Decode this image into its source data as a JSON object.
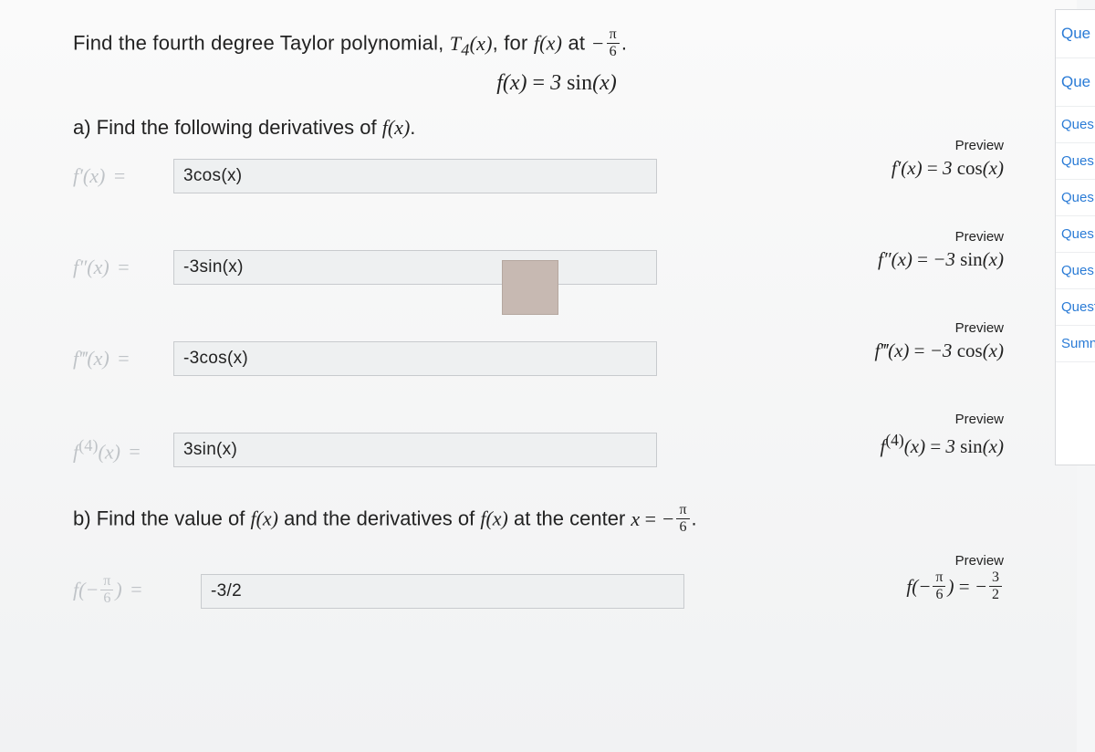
{
  "question": {
    "intro_html": "Find the fourth degree Taylor polynomial, <span class='math'>T<sub>4</sub>(x)</span>, for <span class='math'>f(x)</span> at <span class='math'>−<span class='frac'><span class='num'>π</span><span class='den'>6</span></span></span>.",
    "fn_def_html": "<span class='math'>f(x) <span class='up'>=</span> 3 <span class='up'>sin</span>(x)</span>",
    "part_a_html": "a) Find the following derivatives of <span class='math'>f(x)</span>.",
    "part_b_html": "b) Find the value of <span class='math'>f(x)</span> and the derivatives of <span class='math'>f(x)</span> at the center <span class='math'>x <span class='up'>=</span> −<span class='frac'><span class='num'>π</span><span class='den'>6</span></span></span>."
  },
  "rows": [
    {
      "lhs_html": "f′(x) <span class='eq'>=</span>",
      "input": "3cos(x)",
      "preview_label": "Preview",
      "preview_html": "f′(x) <span class='up'>=</span> 3 <span class='up'>cos</span>(x)"
    },
    {
      "lhs_html": "f″(x) <span class='eq'>=</span>",
      "input": "-3sin(x)",
      "preview_label": "Preview",
      "preview_html": "f″(x) <span class='up'>=</span> −3 <span class='up'>sin</span>(x)"
    },
    {
      "lhs_html": "f‴(x) <span class='eq'>=</span>",
      "input": "-3cos(x)",
      "preview_label": "Preview",
      "preview_html": "f‴(x) <span class='up'>=</span> −3 <span class='up'>cos</span>(x)"
    },
    {
      "lhs_html": "f<sup style='font-style:normal'>(4)</sup>(x) <span class='eq'>=</span>",
      "input": "3sin(x)",
      "preview_label": "Preview",
      "preview_html": "f<sup class='up'>(4)</sup>(x) <span class='up'>=</span> 3 <span class='up'>sin</span>(x)"
    }
  ],
  "row_b": {
    "lhs_html": "f(−<span class='frac' style='color:#bfc3c7'><span class='num' style='border-color:#bfc3c7'>π</span><span class='den'>6</span></span>) <span class='eq'>=</span>",
    "input": "-3/2",
    "preview_label": "Preview",
    "preview_html": "f(−<span class='frac'><span class='num'>π</span><span class='den'>6</span></span>) <span class='up'>=</span> −<span class='frac'><span class='num'>3</span><span class='den'>2</span></span>"
  },
  "sidebar": {
    "items": [
      "Que",
      "Que",
      "Ques",
      "Ques",
      "Ques",
      "Ques",
      "Ques",
      "Quest",
      "Sumn"
    ]
  }
}
